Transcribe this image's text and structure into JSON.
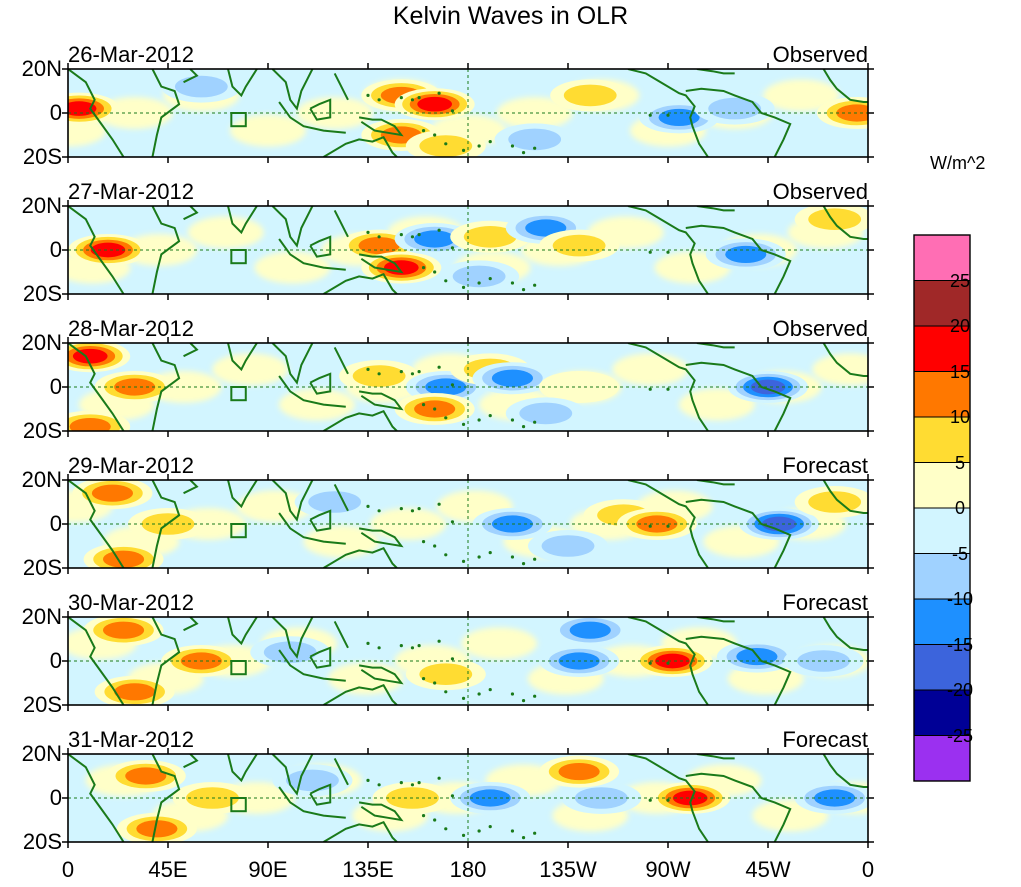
{
  "chart_data": {
    "type": "heatmap",
    "title": "Kelvin Waves in OLR",
    "units": "W/m^2",
    "x_tick_labels": [
      "0",
      "45E",
      "90E",
      "135E",
      "180",
      "135W",
      "90W",
      "45W",
      "0"
    ],
    "y_tick_labels": [
      "20N",
      "0",
      "20S"
    ],
    "xlim_degrees_east": [
      0,
      360
    ],
    "ylim_degrees_lat": [
      -20,
      20
    ],
    "colorbar": {
      "levels": [
        -25,
        -20,
        -15,
        -10,
        -5,
        0,
        5,
        10,
        15,
        20,
        25
      ],
      "labels": [
        "25",
        "20",
        "15",
        "10",
        "5",
        "0",
        "-5",
        "-10",
        "-15",
        "-20",
        "-25"
      ],
      "colors": [
        "#9b30f0",
        "#000096",
        "#3c64dc",
        "#1e90ff",
        "#a0d2ff",
        "#d2f5ff",
        "#ffffc8",
        "#ffdc32",
        "#ff7800",
        "#ff0000",
        "#a02828",
        "#ff6eb4"
      ]
    },
    "panels": [
      {
        "date": "26-Mar-2012",
        "status": "Observed",
        "anomalies": [
          {
            "lon": 5,
            "lat": 2,
            "value": 20
          },
          {
            "lon": 150,
            "lat": 8,
            "value": 15
          },
          {
            "lon": 165,
            "lat": 4,
            "value": 20
          },
          {
            "lon": 150,
            "lat": -10,
            "value": 15
          },
          {
            "lon": 170,
            "lat": -15,
            "value": 10
          },
          {
            "lon": 235,
            "lat": 8,
            "value": 10
          },
          {
            "lon": 275,
            "lat": -2,
            "value": -15
          },
          {
            "lon": 300,
            "lat": 2,
            "value": -10
          },
          {
            "lon": 355,
            "lat": 0,
            "value": 15
          },
          {
            "lon": 210,
            "lat": -12,
            "value": -10
          },
          {
            "lon": 60,
            "lat": 12,
            "value": -10
          }
        ]
      },
      {
        "date": "27-Mar-2012",
        "status": "Observed",
        "anomalies": [
          {
            "lon": 18,
            "lat": 0,
            "value": 20
          },
          {
            "lon": 140,
            "lat": 2,
            "value": 15
          },
          {
            "lon": 150,
            "lat": -8,
            "value": 20
          },
          {
            "lon": 165,
            "lat": 5,
            "value": -15
          },
          {
            "lon": 190,
            "lat": 6,
            "value": 10
          },
          {
            "lon": 215,
            "lat": 10,
            "value": -15
          },
          {
            "lon": 230,
            "lat": 2,
            "value": 10
          },
          {
            "lon": 305,
            "lat": -2,
            "value": -15
          },
          {
            "lon": 345,
            "lat": 14,
            "value": 10
          },
          {
            "lon": 185,
            "lat": -12,
            "value": -10
          }
        ]
      },
      {
        "date": "28-Mar-2012",
        "status": "Observed",
        "anomalies": [
          {
            "lon": 10,
            "lat": 14,
            "value": 20
          },
          {
            "lon": 30,
            "lat": 0,
            "value": 15
          },
          {
            "lon": 10,
            "lat": -18,
            "value": 15
          },
          {
            "lon": 140,
            "lat": 5,
            "value": 10
          },
          {
            "lon": 170,
            "lat": 0,
            "value": -15
          },
          {
            "lon": 165,
            "lat": -10,
            "value": 15
          },
          {
            "lon": 190,
            "lat": 8,
            "value": 10
          },
          {
            "lon": 200,
            "lat": 4,
            "value": -15
          },
          {
            "lon": 230,
            "lat": 0,
            "value": 5
          },
          {
            "lon": 315,
            "lat": 0,
            "value": -20
          },
          {
            "lon": 215,
            "lat": -12,
            "value": -10
          }
        ]
      },
      {
        "date": "29-Mar-2012",
        "status": "Forecast",
        "anomalies": [
          {
            "lon": 20,
            "lat": 14,
            "value": 15
          },
          {
            "lon": 25,
            "lat": -16,
            "value": 15
          },
          {
            "lon": 45,
            "lat": 0,
            "value": 10
          },
          {
            "lon": 120,
            "lat": 10,
            "value": -10
          },
          {
            "lon": 200,
            "lat": 0,
            "value": -15
          },
          {
            "lon": 250,
            "lat": 4,
            "value": 10
          },
          {
            "lon": 265,
            "lat": 0,
            "value": 15
          },
          {
            "lon": 320,
            "lat": 0,
            "value": -20
          },
          {
            "lon": 345,
            "lat": 10,
            "value": 10
          },
          {
            "lon": 225,
            "lat": -10,
            "value": -10
          }
        ]
      },
      {
        "date": "30-Mar-2012",
        "status": "Forecast",
        "anomalies": [
          {
            "lon": 25,
            "lat": 14,
            "value": 15
          },
          {
            "lon": 30,
            "lat": -14,
            "value": 15
          },
          {
            "lon": 60,
            "lat": 0,
            "value": 15
          },
          {
            "lon": 100,
            "lat": 4,
            "value": -10
          },
          {
            "lon": 170,
            "lat": -6,
            "value": 10
          },
          {
            "lon": 230,
            "lat": 0,
            "value": -15
          },
          {
            "lon": 272,
            "lat": 0,
            "value": 20
          },
          {
            "lon": 310,
            "lat": 2,
            "value": -15
          },
          {
            "lon": 340,
            "lat": 0,
            "value": -10
          },
          {
            "lon": 235,
            "lat": 14,
            "value": -15
          }
        ]
      },
      {
        "date": "31-Mar-2012",
        "status": "Forecast",
        "anomalies": [
          {
            "lon": 35,
            "lat": 10,
            "value": 15
          },
          {
            "lon": 40,
            "lat": -14,
            "value": 15
          },
          {
            "lon": 65,
            "lat": 0,
            "value": 10
          },
          {
            "lon": 110,
            "lat": 8,
            "value": -10
          },
          {
            "lon": 155,
            "lat": 0,
            "value": 10
          },
          {
            "lon": 190,
            "lat": 0,
            "value": -15
          },
          {
            "lon": 240,
            "lat": 0,
            "value": -10
          },
          {
            "lon": 280,
            "lat": 0,
            "value": 20
          },
          {
            "lon": 345,
            "lat": 0,
            "value": -15
          },
          {
            "lon": 230,
            "lat": 12,
            "value": 15
          }
        ]
      }
    ]
  }
}
